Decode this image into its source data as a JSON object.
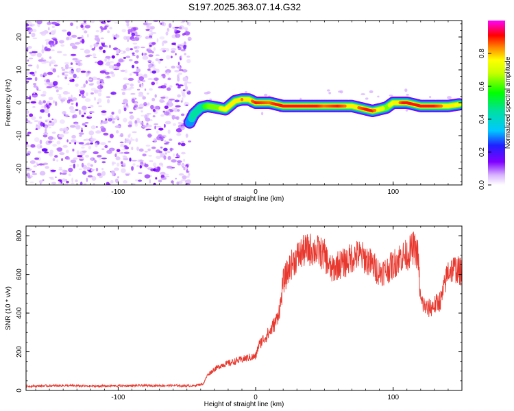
{
  "title": "S197.2025.363.07.14.G32",
  "chart_data": [
    {
      "type": "heatmap",
      "xlabel": "Height of straight line (km)",
      "ylabel": "Frequency (Hz)",
      "xlim": [
        -167,
        150
      ],
      "ylim": [
        -25,
        25
      ],
      "xticks": [
        -100,
        0,
        100
      ],
      "yticks": [
        -20,
        -10,
        0,
        10,
        20
      ],
      "colorbar": {
        "label": "Normalized spectral amplitude",
        "range": [
          0,
          1
        ],
        "ticks": [
          0.0,
          0.2,
          0.4,
          0.6,
          0.8
        ]
      },
      "noise_region_km": [
        -167,
        -48
      ],
      "signal_track": {
        "description_points": [
          {
            "x": -48,
            "y": -6,
            "amp": 0.35
          },
          {
            "x": -45,
            "y": -3.5,
            "amp": 0.45
          },
          {
            "x": -40,
            "y": -1.5,
            "amp": 0.55
          },
          {
            "x": -35,
            "y": -1,
            "amp": 0.6
          },
          {
            "x": -28,
            "y": -1.5,
            "amp": 0.7
          },
          {
            "x": -22,
            "y": -2,
            "amp": 0.75
          },
          {
            "x": -15,
            "y": 0.5,
            "amp": 0.8
          },
          {
            "x": -10,
            "y": 1,
            "amp": 0.85
          },
          {
            "x": -5,
            "y": 1,
            "amp": 0.8
          },
          {
            "x": 0,
            "y": 0,
            "amp": 0.9
          },
          {
            "x": 10,
            "y": 0,
            "amp": 0.85
          },
          {
            "x": 20,
            "y": -1,
            "amp": 0.95
          },
          {
            "x": 30,
            "y": -1,
            "amp": 1.0
          },
          {
            "x": 40,
            "y": -1,
            "amp": 0.95
          },
          {
            "x": 50,
            "y": -1,
            "amp": 0.85
          },
          {
            "x": 60,
            "y": -1,
            "amp": 0.9
          },
          {
            "x": 70,
            "y": -1,
            "amp": 0.8
          },
          {
            "x": 80,
            "y": -2,
            "amp": 0.9
          },
          {
            "x": 85,
            "y": -2.5,
            "amp": 0.9
          },
          {
            "x": 90,
            "y": -2,
            "amp": 0.75
          },
          {
            "x": 95,
            "y": -1.5,
            "amp": 0.7
          },
          {
            "x": 100,
            "y": 0,
            "amp": 0.75
          },
          {
            "x": 110,
            "y": 0,
            "amp": 0.95
          },
          {
            "x": 120,
            "y": -1,
            "amp": 0.9
          },
          {
            "x": 130,
            "y": -1,
            "amp": 0.9
          },
          {
            "x": 140,
            "y": -1,
            "amp": 0.8
          },
          {
            "x": 148,
            "y": -0.5,
            "amp": 0.75
          }
        ]
      }
    },
    {
      "type": "line",
      "xlabel": "Height of straight line (km)",
      "ylabel": "SNR (10 * v/v)",
      "xlim": [
        -167,
        150
      ],
      "ylim": [
        0,
        850
      ],
      "xticks": [
        -100,
        0,
        100
      ],
      "yticks": [
        0,
        200,
        400,
        600,
        800
      ],
      "series": [
        {
          "name": "SNR",
          "color": "#e8382e",
          "x": [
            -167,
            -140,
            -120,
            -100,
            -80,
            -60,
            -45,
            -38,
            -35,
            -30,
            -25,
            -20,
            -15,
            -10,
            -5,
            0,
            2,
            5,
            10,
            15,
            18,
            20,
            25,
            30,
            35,
            40,
            45,
            50,
            55,
            60,
            65,
            70,
            75,
            80,
            85,
            90,
            95,
            100,
            105,
            110,
            115,
            118,
            120,
            125,
            130,
            135,
            140,
            145,
            150
          ],
          "values": [
            22,
            25,
            22,
            24,
            25,
            25,
            24,
            35,
            80,
            110,
            130,
            140,
            150,
            160,
            170,
            175,
            230,
            260,
            300,
            360,
            440,
            560,
            640,
            690,
            720,
            730,
            720,
            700,
            620,
            650,
            660,
            690,
            700,
            680,
            650,
            610,
            620,
            650,
            690,
            700,
            740,
            700,
            460,
            420,
            440,
            470,
            620,
            630,
            610
          ]
        }
      ]
    }
  ]
}
